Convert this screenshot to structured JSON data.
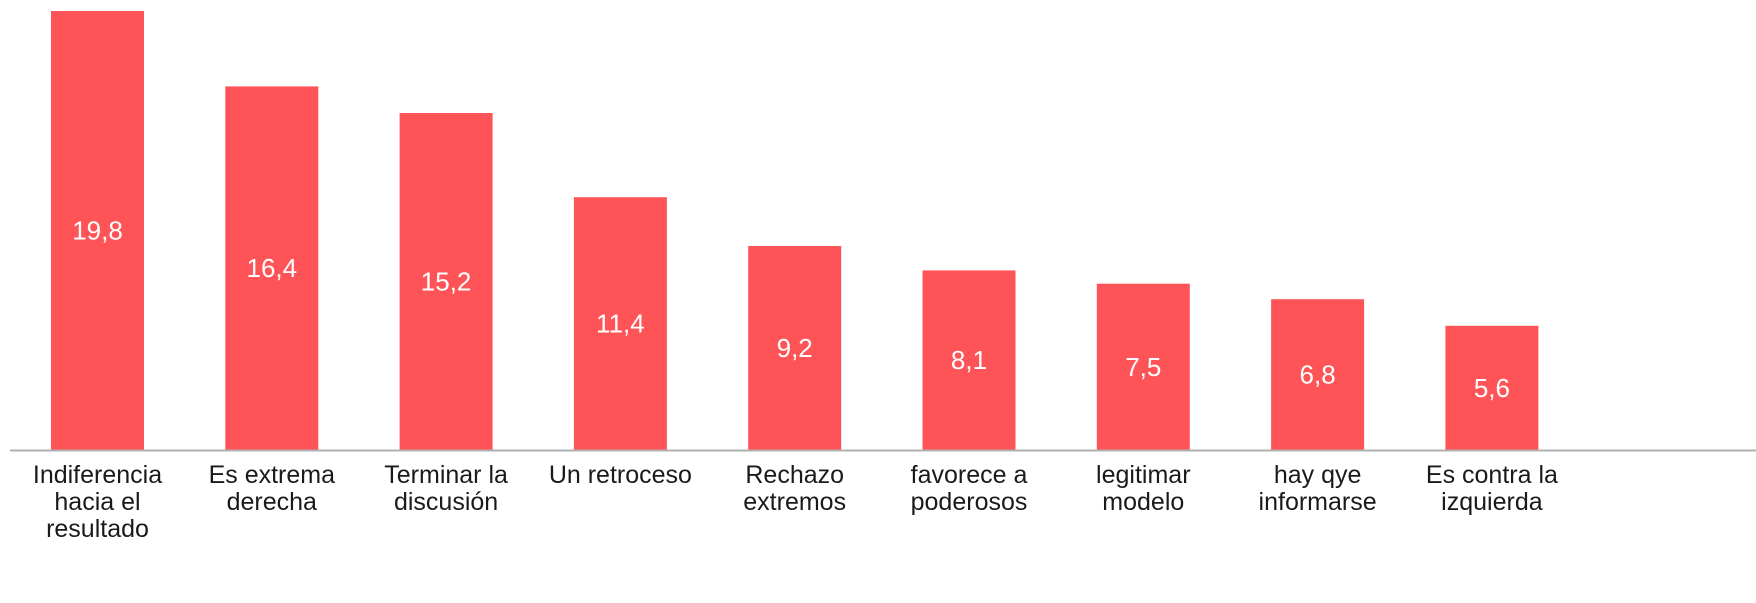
{
  "chart_data": {
    "type": "bar",
    "categories": [
      [
        "Indiferencia",
        "hacia el",
        "resultado"
      ],
      [
        "Es extrema",
        "derecha"
      ],
      [
        "Terminar la",
        "discusión"
      ],
      [
        "Un retroceso"
      ],
      [
        "Rechazo",
        "extremos"
      ],
      [
        "favorece a",
        "poderosos"
      ],
      [
        "legitimar",
        "modelo"
      ],
      [
        "hay qye",
        "informarse"
      ],
      [
        "Es contra la",
        "izquierda"
      ]
    ],
    "values": [
      19.8,
      16.4,
      15.2,
      11.4,
      9.2,
      8.1,
      7.5,
      6.8,
      5.6
    ],
    "value_labels": [
      "19,8",
      "16,4",
      "15,2",
      "11,4",
      "9,2",
      "8,1",
      "7,5",
      "6,8",
      "5,6"
    ],
    "title": "",
    "xlabel": "",
    "ylabel": "",
    "ylim": [
      0,
      19.8
    ],
    "grid": false,
    "bar_color": "#ff5457",
    "axis_color": "#b0b0b0"
  }
}
